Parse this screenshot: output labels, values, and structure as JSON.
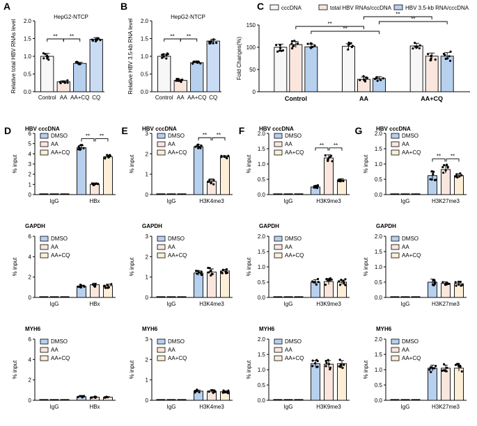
{
  "colors": {
    "white": "#f7f7f7",
    "pink": "#fbe6de",
    "blue": "#b6d0ee",
    "blue_dark": "#3f7fd6",
    "lightblue": "#c9dcf3",
    "black": "#000000"
  },
  "top_row": [
    {
      "panel": "A",
      "title": "HepG2-NTCP",
      "ylabel": "Relative total HBV RNAs level",
      "categories": [
        "Control",
        "AA",
        "AA+CQ",
        "CQ"
      ],
      "values": [
        1.0,
        0.28,
        0.8,
        1.48
      ],
      "errors": [
        0.08,
        0.03,
        0.03,
        0.05
      ],
      "bar_colors": [
        "#f7f7f7",
        "#fbe6de",
        "#b6d0ee",
        "#c9dcf3"
      ],
      "yticks": [
        "0.0",
        "0.5",
        "1.0",
        "1.5",
        "2.0"
      ],
      "ylim": [
        0,
        2.0
      ],
      "sig": [
        {
          "from": 0,
          "to": 1,
          "label": "**"
        },
        {
          "from": 1,
          "to": 2,
          "label": "**"
        }
      ]
    },
    {
      "panel": "B",
      "title": "HepG2-NTCP",
      "ylabel": "Relative HBV 3.5-kb RNA level",
      "categories": [
        "Control",
        "AA",
        "AA+CQ",
        "CQ"
      ],
      "values": [
        1.0,
        0.32,
        0.82,
        1.43
      ],
      "errors": [
        0.06,
        0.03,
        0.03,
        0.05
      ],
      "bar_colors": [
        "#f7f7f7",
        "#fbe6de",
        "#b6d0ee",
        "#c9dcf3"
      ],
      "yticks": [
        "0.0",
        "0.5",
        "1.0",
        "1.5",
        "2.0"
      ],
      "ylim": [
        0,
        2.0
      ],
      "sig": [
        {
          "from": 0,
          "to": 1,
          "label": "**"
        },
        {
          "from": 1,
          "to": 2,
          "label": "**"
        }
      ]
    }
  ],
  "panel_c": {
    "panel": "C",
    "ylabel": "Fold Changes(%)",
    "legend": [
      "cccDNA",
      "total HBV RNAs/cccDNA",
      "HBV 3.5-kb RNA/cccDNA"
    ],
    "groups": [
      "Control",
      "AA",
      "AA+CQ"
    ],
    "series_colors": [
      "#f7f7f7",
      "#fbe6de",
      "#b6d0ee"
    ],
    "values": [
      [
        100,
        106,
        101
      ],
      [
        102,
        28,
        30
      ],
      [
        103,
        80,
        80
      ]
    ],
    "errors": [
      [
        7,
        7,
        6
      ],
      [
        6,
        5,
        4
      ],
      [
        6,
        7,
        8
      ]
    ],
    "yticks": [
      "0",
      "50",
      "100",
      "150"
    ],
    "ylim": [
      0,
      150
    ],
    "sig_label": "**"
  },
  "chip_panels": [
    {
      "panel": "D",
      "mark": "HBx",
      "rows": [
        {
          "gene": "HBV cccDNA",
          "ylim": [
            0,
            6
          ],
          "yticks": [
            "0",
            "1",
            "2",
            "3",
            "4",
            "5",
            "6"
          ],
          "values": [
            4.6,
            1.0,
            3.7
          ],
          "errors": [
            0.2,
            0.15,
            0.15
          ],
          "sig": true
        },
        {
          "gene": "GAPDH",
          "ylim": [
            0,
            6
          ],
          "yticks": [
            "0",
            "2",
            "4",
            "6"
          ],
          "values": [
            1.1,
            1.25,
            1.15
          ],
          "errors": [
            0.1,
            0.15,
            0.15
          ],
          "sig": false
        },
        {
          "gene": "MYH6",
          "ylim": [
            0,
            6
          ],
          "yticks": [
            "0",
            "2",
            "4",
            "6"
          ],
          "values": [
            0.35,
            0.3,
            0.3
          ],
          "errors": [
            0.05,
            0.05,
            0.05
          ],
          "sig": false
        }
      ]
    },
    {
      "panel": "E",
      "mark": "H3K4me3",
      "rows": [
        {
          "gene": "HBV cccDNA",
          "ylim": [
            0,
            3
          ],
          "yticks": [
            "0",
            "1",
            "2",
            "3"
          ],
          "values": [
            2.35,
            0.65,
            1.85
          ],
          "errors": [
            0.1,
            0.12,
            0.06
          ],
          "sig": true
        },
        {
          "gene": "GAPDH",
          "ylim": [
            0,
            3
          ],
          "yticks": [
            "0",
            "1",
            "2",
            "3"
          ],
          "values": [
            1.2,
            1.25,
            1.3
          ],
          "errors": [
            0.12,
            0.15,
            0.08
          ],
          "sig": false
        },
        {
          "gene": "MYH6",
          "ylim": [
            0,
            3
          ],
          "yticks": [
            "0",
            "1",
            "2",
            "3"
          ],
          "values": [
            0.45,
            0.45,
            0.42
          ],
          "errors": [
            0.05,
            0.06,
            0.05
          ],
          "sig": false
        }
      ]
    },
    {
      "panel": "F",
      "mark": "H3K9me3",
      "rows": [
        {
          "gene": "HBV cccDNA",
          "ylim": [
            0,
            2.0
          ],
          "yticks": [
            "0.0",
            "0.5",
            "1.0",
            "1.5",
            "2.0"
          ],
          "values": [
            0.25,
            1.2,
            0.48
          ],
          "errors": [
            0.04,
            0.1,
            0.04
          ],
          "sig": true
        },
        {
          "gene": "GAPDH",
          "ylim": [
            0,
            2.0
          ],
          "yticks": [
            "0.0",
            "0.5",
            "1.0",
            "1.5",
            "2.0"
          ],
          "values": [
            0.5,
            0.52,
            0.5
          ],
          "errors": [
            0.08,
            0.1,
            0.07
          ],
          "sig": false
        },
        {
          "gene": "MYH6",
          "ylim": [
            0,
            2.0
          ],
          "yticks": [
            "0.0",
            "0.5",
            "1.0",
            "1.5",
            "2.0"
          ],
          "values": [
            1.2,
            1.18,
            1.2
          ],
          "errors": [
            0.1,
            0.12,
            0.1
          ],
          "sig": false
        }
      ]
    },
    {
      "panel": "G",
      "mark": "H3K27me3",
      "rows": [
        {
          "gene": "HBV cccDNA",
          "ylim": [
            0,
            2.0
          ],
          "yticks": [
            "0.0",
            "0.5",
            "1.0",
            "1.5",
            "2.0"
          ],
          "values": [
            0.62,
            0.82,
            0.62
          ],
          "errors": [
            0.12,
            0.12,
            0.06
          ],
          "sig": true
        },
        {
          "gene": "GAPDH",
          "ylim": [
            0,
            2.0
          ],
          "yticks": [
            "0.0",
            "0.5",
            "1.0",
            "1.5",
            "2.0"
          ],
          "values": [
            0.5,
            0.46,
            0.45
          ],
          "errors": [
            0.1,
            0.05,
            0.05
          ],
          "sig": false
        },
        {
          "gene": "MYH6",
          "ylim": [
            0,
            2.0
          ],
          "yticks": [
            "0.0",
            "0.5",
            "1.0",
            "1.5",
            "2.0"
          ],
          "values": [
            1.05,
            1.05,
            1.05
          ],
          "errors": [
            0.1,
            0.1,
            0.1
          ],
          "sig": false
        }
      ]
    }
  ],
  "chip_common": {
    "ylabel": "% input",
    "legend": [
      "DMSO",
      "AA",
      "AA+CQ"
    ],
    "colors": [
      "#b6d0ee",
      "#fbe6de",
      "#fdeed8"
    ],
    "igg_label": "IgG",
    "sig_label": "**"
  },
  "chart_data": [
    {
      "type": "bar",
      "title": "HepG2-NTCP",
      "ylabel": "Relative total HBV RNAs level",
      "categories": [
        "Control",
        "AA",
        "AA+CQ",
        "CQ"
      ],
      "values": [
        1.0,
        0.28,
        0.8,
        1.48
      ],
      "ylim": [
        0,
        2.0
      ]
    },
    {
      "type": "bar",
      "title": "HepG2-NTCP",
      "ylabel": "Relative HBV 3.5-kb RNA level",
      "categories": [
        "Control",
        "AA",
        "AA+CQ",
        "CQ"
      ],
      "values": [
        1.0,
        0.32,
        0.82,
        1.43
      ],
      "ylim": [
        0,
        2.0
      ]
    },
    {
      "type": "bar",
      "ylabel": "Fold Changes(%)",
      "categories": [
        "Control",
        "AA",
        "AA+CQ"
      ],
      "series": [
        {
          "name": "cccDNA",
          "values": [
            100,
            102,
            103
          ]
        },
        {
          "name": "total HBV RNAs/cccDNA",
          "values": [
            106,
            28,
            80
          ]
        },
        {
          "name": "HBV 3.5-kb RNA/cccDNA",
          "values": [
            101,
            30,
            80
          ]
        }
      ],
      "ylim": [
        0,
        150
      ]
    },
    {
      "type": "bar",
      "panel": "D",
      "categories": [
        "IgG",
        "HBx"
      ],
      "series_names": [
        "DMSO",
        "AA",
        "AA+CQ"
      ],
      "HBV cccDNA": [
        [
          0.02,
          0.02,
          0.02
        ],
        [
          4.6,
          1.0,
          3.7
        ]
      ],
      "GAPDH": [
        [
          0.02,
          0.02,
          0.02
        ],
        [
          1.1,
          1.25,
          1.15
        ]
      ],
      "MYH6": [
        [
          0.02,
          0.02,
          0.02
        ],
        [
          0.35,
          0.3,
          0.3
        ]
      ]
    },
    {
      "type": "bar",
      "panel": "E",
      "categories": [
        "IgG",
        "H3K4me3"
      ],
      "series_names": [
        "DMSO",
        "AA",
        "AA+CQ"
      ],
      "HBV cccDNA": [
        [
          0.02,
          0.02,
          0.02
        ],
        [
          2.35,
          0.65,
          1.85
        ]
      ],
      "GAPDH": [
        [
          0.02,
          0.02,
          0.02
        ],
        [
          1.2,
          1.25,
          1.3
        ]
      ],
      "MYH6": [
        [
          0.02,
          0.02,
          0.02
        ],
        [
          0.45,
          0.45,
          0.42
        ]
      ]
    },
    {
      "type": "bar",
      "panel": "F",
      "categories": [
        "IgG",
        "H3K9me3"
      ],
      "series_names": [
        "DMSO",
        "AA",
        "AA+CQ"
      ],
      "HBV cccDNA": [
        [
          0.02,
          0.02,
          0.02
        ],
        [
          0.25,
          1.2,
          0.48
        ]
      ],
      "GAPDH": [
        [
          0.02,
          0.02,
          0.02
        ],
        [
          0.5,
          0.52,
          0.5
        ]
      ],
      "MYH6": [
        [
          0.02,
          0.02,
          0.02
        ],
        [
          1.2,
          1.18,
          1.2
        ]
      ]
    },
    {
      "type": "bar",
      "panel": "G",
      "categories": [
        "IgG",
        "H3K27me3"
      ],
      "series_names": [
        "DMSO",
        "AA",
        "AA+CQ"
      ],
      "HBV cccDNA": [
        [
          0.02,
          0.02,
          0.02
        ],
        [
          0.62,
          0.82,
          0.62
        ]
      ],
      "GAPDH": [
        [
          0.02,
          0.02,
          0.02
        ],
        [
          0.5,
          0.46,
          0.45
        ]
      ],
      "MYH6": [
        [
          0.02,
          0.02,
          0.02
        ],
        [
          1.05,
          1.05,
          1.05
        ]
      ]
    }
  ]
}
